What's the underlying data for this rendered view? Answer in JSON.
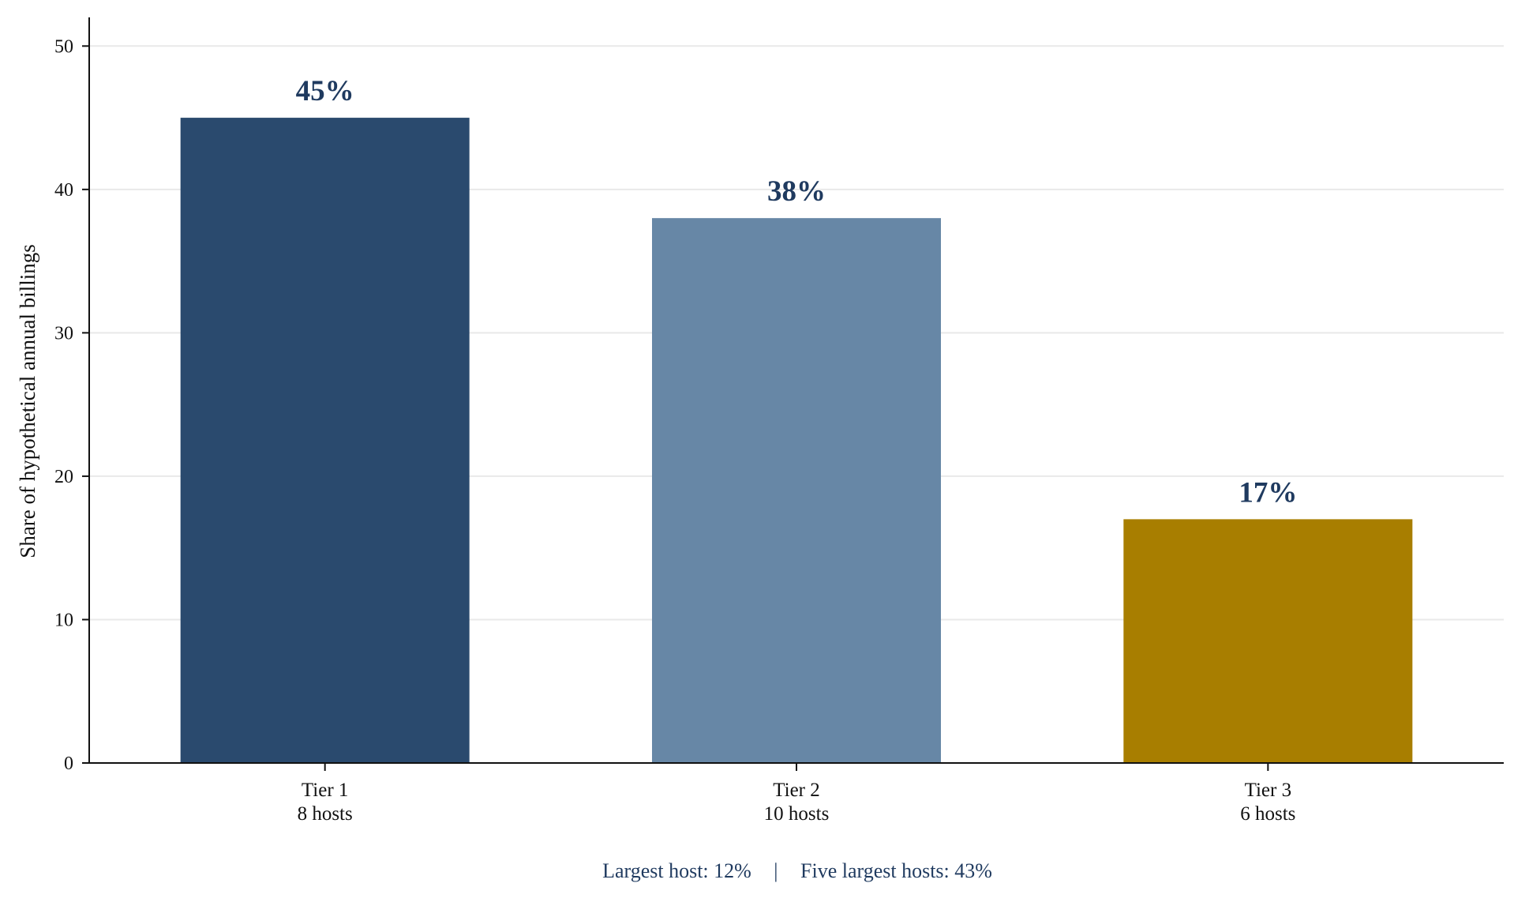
{
  "chart_data": {
    "type": "bar",
    "categories": [
      {
        "name": "Tier 1",
        "detail": "8 hosts"
      },
      {
        "name": "Tier 2",
        "detail": "10 hosts"
      },
      {
        "name": "Tier 3",
        "detail": "6 hosts"
      }
    ],
    "values": [
      45,
      38,
      17
    ],
    "data_labels": [
      "45%",
      "38%",
      "17%"
    ],
    "bar_colors": [
      "#2a4a6e",
      "#6787a6",
      "#a87e00"
    ],
    "label_color": "#1f3a5f",
    "title": "",
    "xlabel": "",
    "ylabel": "Share of hypothetical annual billings",
    "ylim": [
      0,
      52
    ],
    "yticks": [
      0,
      10,
      20,
      30,
      40,
      50
    ],
    "grid": "horizontal",
    "footnote": {
      "largest": "Largest host: 12%",
      "separator": "|",
      "five_largest": "Five largest hosts: 43%"
    }
  }
}
